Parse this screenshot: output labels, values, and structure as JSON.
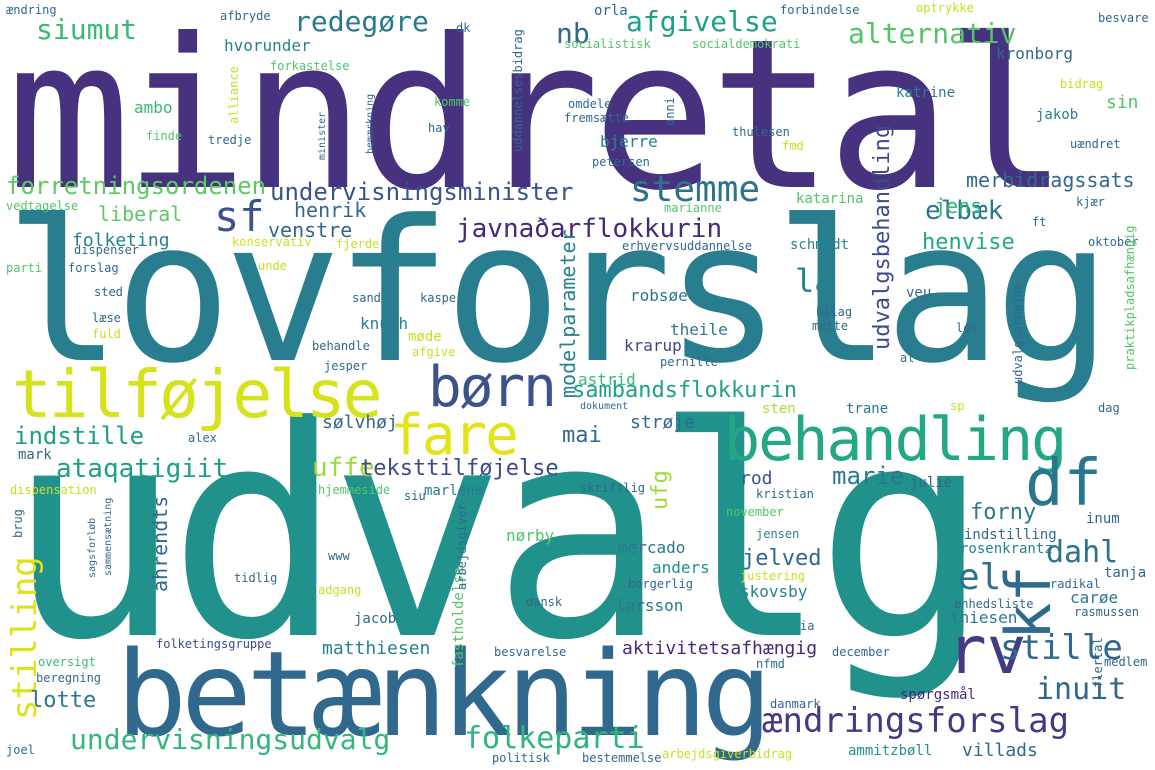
{
  "words": [
    {
      "text": "mindretal",
      "color": "#46327e"
    },
    {
      "text": "lovforslag",
      "color": "#287d8e"
    },
    {
      "text": "udvalg",
      "color": "#21918c"
    },
    {
      "text": "betænkning",
      "color": "#31688e"
    },
    {
      "text": "behandling",
      "color": "#22a884"
    },
    {
      "text": "tilføjelse",
      "color": "#d6e21a"
    },
    {
      "text": "børn",
      "color": "#3b528b"
    },
    {
      "text": "fare",
      "color": "#e3e418"
    },
    {
      "text": "df",
      "color": "#2a768e"
    },
    {
      "text": "kf",
      "color": "#31688e"
    },
    {
      "text": "rv",
      "color": "#443983"
    },
    {
      "text": "sf",
      "color": "#3b528b"
    },
    {
      "text": "stemme",
      "color": "#2c728e"
    },
    {
      "text": "el",
      "color": "#2c728e"
    },
    {
      "text": "ændringsforslag",
      "color": "#443983"
    },
    {
      "text": "undervisningsudvalg",
      "color": "#35b779"
    },
    {
      "text": "folkeparti",
      "color": "#2fb47c"
    },
    {
      "text": "stille",
      "color": "#31688e"
    },
    {
      "text": "inuit",
      "color": "#31688e"
    },
    {
      "text": "dahl",
      "color": "#2c728e"
    },
    {
      "text": "stilling",
      "color": "#dde318"
    },
    {
      "text": "siumut",
      "color": "#3aba76"
    },
    {
      "text": "redegøre",
      "color": "#2a788e"
    },
    {
      "text": "afgivelse",
      "color": "#1fa188"
    },
    {
      "text": "alternativ",
      "color": "#52c569"
    },
    {
      "text": "nb",
      "color": "#31688e"
    },
    {
      "text": "forretningsordenen",
      "color": "#5ec962"
    },
    {
      "text": "undervisningsminister",
      "color": "#3b528b"
    },
    {
      "text": "javnaðarflokkurin",
      "color": "#482878"
    },
    {
      "text": "elbæk",
      "color": "#2a788e"
    },
    {
      "text": "udvalgsbehandling",
      "color": "#3e4989"
    },
    {
      "text": "merbidragssats",
      "color": "#31688e"
    },
    {
      "text": "liberal",
      "color": "#5ec962"
    },
    {
      "text": "folketing",
      "color": "#26828e"
    },
    {
      "text": "henrik",
      "color": "#31688e"
    },
    {
      "text": "venstre",
      "color": "#31688e"
    },
    {
      "text": "jens",
      "color": "#2fb47c"
    },
    {
      "text": "henvise",
      "color": "#22a884"
    },
    {
      "text": "la",
      "color": "#26828e"
    },
    {
      "text": "sambandsflokkurin",
      "color": "#1fa188"
    },
    {
      "text": "indstille",
      "color": "#1f9e89"
    },
    {
      "text": "ataqatigiit",
      "color": "#1f9e89"
    },
    {
      "text": "uffe",
      "color": "#a0da39"
    },
    {
      "text": "teksttilføjelse",
      "color": "#3e4989"
    },
    {
      "text": "mai",
      "color": "#31688e"
    },
    {
      "text": "marie",
      "color": "#2a788e"
    },
    {
      "text": "ufg",
      "color": "#a0da39"
    },
    {
      "text": "forny",
      "color": "#2a788e"
    },
    {
      "text": "lotte",
      "color": "#2a788e"
    },
    {
      "text": "modelparameter",
      "color": "#26828e"
    },
    {
      "text": "sølvhøj",
      "color": "#31688e"
    },
    {
      "text": "strøje",
      "color": "#31688e"
    },
    {
      "text": "ahrendts",
      "color": "#31688e"
    },
    {
      "text": "jelved",
      "color": "#31688e"
    },
    {
      "text": "aktivitetsafhængig",
      "color": "#482878"
    },
    {
      "text": "matthiesen",
      "color": "#26828e"
    },
    {
      "text": "ambo",
      "color": "#3aba76"
    },
    {
      "text": "hvorunder",
      "color": "#26828e"
    },
    {
      "text": "kronborg",
      "color": "#31688e"
    },
    {
      "text": "katrine",
      "color": "#26828e"
    },
    {
      "text": "jakob",
      "color": "#26828e"
    },
    {
      "text": "sin",
      "color": "#52c569"
    },
    {
      "text": "bjerre",
      "color": "#26828e"
    },
    {
      "text": "katarina",
      "color": "#52c569"
    },
    {
      "text": "schmidt",
      "color": "#26828e"
    },
    {
      "text": "knuth",
      "color": "#26828e"
    },
    {
      "text": "robsøe",
      "color": "#2a788e"
    },
    {
      "text": "theile",
      "color": "#2a788e"
    },
    {
      "text": "krarup",
      "color": "#3e4989"
    },
    {
      "text": "astrid",
      "color": "#3aba76"
    },
    {
      "text": "rod",
      "color": "#3b528b"
    },
    {
      "text": "marlene",
      "color": "#2a788e"
    },
    {
      "text": "mercado",
      "color": "#2a788e"
    },
    {
      "text": "anders",
      "color": "#21918c"
    },
    {
      "text": "nørby",
      "color": "#52c569"
    },
    {
      "text": "larsson",
      "color": "#2a788e"
    },
    {
      "text": "skovsby",
      "color": "#26828e"
    },
    {
      "text": "carøe",
      "color": "#2a788e"
    },
    {
      "text": "thiesen",
      "color": "#2a788e"
    },
    {
      "text": "villads",
      "color": "#31688e"
    },
    {
      "text": "indstilling",
      "color": "#31688e"
    },
    {
      "text": "rosenkrantz",
      "color": "#26828e"
    },
    {
      "text": "jacob",
      "color": "#31688e"
    },
    {
      "text": "tanja",
      "color": "#31688e"
    },
    {
      "text": "jensen",
      "color": "#26828e"
    },
    {
      "text": "sten",
      "color": "#addc30"
    },
    {
      "text": "trane",
      "color": "#2a788e"
    },
    {
      "text": "julie",
      "color": "#31688e"
    },
    {
      "text": "kristian",
      "color": "#31688e"
    },
    {
      "text": "veu",
      "color": "#31688e"
    },
    {
      "text": "møde",
      "color": "#c8e020"
    },
    {
      "text": "sand",
      "color": "#31688e"
    },
    {
      "text": "kaspe",
      "color": "#31688e"
    },
    {
      "text": "mark",
      "color": "#31688e"
    },
    {
      "text": "alex",
      "color": "#31688e"
    },
    {
      "text": "inum",
      "color": "#31688e"
    },
    {
      "text": "folketingsgruppe",
      "color": "#3e4989"
    },
    {
      "text": "fastholdelse",
      "color": "#52c569"
    },
    {
      "text": "besvarelse",
      "color": "#31688e"
    },
    {
      "text": "december",
      "color": "#31688e"
    },
    {
      "text": "medlem",
      "color": "#31688e"
    },
    {
      "text": "nfmd",
      "color": "#31688e"
    },
    {
      "text": "ia",
      "color": "#31688e"
    },
    {
      "text": "ammitzbøll",
      "color": "#21918c"
    },
    {
      "text": "spørgsmål",
      "color": "#482878"
    },
    {
      "text": "flertal",
      "color": "#31688e"
    },
    {
      "text": "rasmussen",
      "color": "#31688e"
    },
    {
      "text": "radikal",
      "color": "#31688e"
    },
    {
      "text": "enhedsliste",
      "color": "#31688e"
    },
    {
      "text": "justering",
      "color": "#c8e020"
    },
    {
      "text": "borgerlig",
      "color": "#31688e"
    },
    {
      "text": "dansk",
      "color": "#31688e"
    },
    {
      "text": "arbejdsgiver",
      "color": "#31688e"
    },
    {
      "text": "tidlig",
      "color": "#31688e"
    },
    {
      "text": "adgang",
      "color": "#c8e020"
    },
    {
      "text": "oversigt",
      "color": "#3aba76"
    },
    {
      "text": "beregning",
      "color": "#31688e"
    },
    {
      "text": "joel",
      "color": "#31688e"
    },
    {
      "text": "politisk",
      "color": "#31688e"
    },
    {
      "text": "bestemmelse",
      "color": "#31688e"
    },
    {
      "text": "arbejdsgiverbidrag",
      "color": "#c8e020"
    },
    {
      "text": "danmark",
      "color": "#31688e"
    },
    {
      "text": "ændring",
      "color": "#31688e"
    },
    {
      "text": "afbryde",
      "color": "#31688e"
    },
    {
      "text": "forkastelse",
      "color": "#52c569"
    },
    {
      "text": "dk",
      "color": "#31688e"
    },
    {
      "text": "orla",
      "color": "#31688e"
    },
    {
      "text": "forbindelse",
      "color": "#31688e"
    },
    {
      "text": "optrykke",
      "color": "#c8e020"
    },
    {
      "text": "besvare",
      "color": "#31688e"
    },
    {
      "text": "socialistisk",
      "color": "#52c569"
    },
    {
      "text": "socialdemokrati",
      "color": "#52c569"
    },
    {
      "text": "uddannelsesbidrag",
      "color": "#31688e"
    },
    {
      "text": "bidrag",
      "color": "#c8e020"
    },
    {
      "text": "uændret",
      "color": "#31688e"
    },
    {
      "text": "thulesen",
      "color": "#31688e"
    },
    {
      "text": "fmd",
      "color": "#c8e020"
    },
    {
      "text": "petersen",
      "color": "#31688e"
    },
    {
      "text": "anni",
      "color": "#31688e"
    },
    {
      "text": "omdele",
      "color": "#31688e"
    },
    {
      "text": "fremsætte",
      "color": "#31688e"
    },
    {
      "text": "komme",
      "color": "#52c569"
    },
    {
      "text": "hav",
      "color": "#31688e"
    },
    {
      "text": "bemærkning",
      "color": "#31688e"
    },
    {
      "text": "minister",
      "color": "#31688e"
    },
    {
      "text": "alliance",
      "color": "#c8e020"
    },
    {
      "text": "tredje",
      "color": "#31688e"
    },
    {
      "text": "finde",
      "color": "#52c569"
    },
    {
      "text": "vedtagelse",
      "color": "#52c569"
    },
    {
      "text": "dispenser",
      "color": "#31688e"
    },
    {
      "text": "konservativ",
      "color": "#c8e020"
    },
    {
      "text": "parti",
      "color": "#52c569"
    },
    {
      "text": "forslag",
      "color": "#31688e"
    },
    {
      "text": "unde",
      "color": "#c8e020"
    },
    {
      "text": "fjerde",
      "color": "#c8e020"
    },
    {
      "text": "sted",
      "color": "#31688e"
    },
    {
      "text": "læse",
      "color": "#31688e"
    },
    {
      "text": "fuld",
      "color": "#c8e020"
    },
    {
      "text": "behandle",
      "color": "#31688e"
    },
    {
      "text": "afgive",
      "color": "#c8e020"
    },
    {
      "text": "jesper",
      "color": "#31688e"
    },
    {
      "text": "marianne",
      "color": "#52c569"
    },
    {
      "text": "erhvervsuddannelse",
      "color": "#31688e"
    },
    {
      "text": "ft",
      "color": "#31688e"
    },
    {
      "text": "kjær",
      "color": "#31688e"
    },
    {
      "text": "oktober",
      "color": "#31688e"
    },
    {
      "text": "praktikpladsafhængig",
      "color": "#52c569"
    },
    {
      "text": "udvalgsarbejde",
      "color": "#31688e"
    },
    {
      "text": "lov",
      "color": "#31688e"
    },
    {
      "text": "al",
      "color": "#31688e"
    },
    {
      "text": "bilag",
      "color": "#31688e"
    },
    {
      "text": "mette",
      "color": "#31688e"
    },
    {
      "text": "pernille",
      "color": "#31688e"
    },
    {
      "text": "dag",
      "color": "#31688e"
    },
    {
      "text": "sp",
      "color": "#c8e020"
    },
    {
      "text": "dokument",
      "color": "#31688e"
    },
    {
      "text": "november",
      "color": "#52c569"
    },
    {
      "text": "skriftlig",
      "color": "#31688e"
    },
    {
      "text": "siu",
      "color": "#31688e"
    },
    {
      "text": "hjemmeside",
      "color": "#52c569"
    },
    {
      "text": "dispensation",
      "color": "#c8e020"
    },
    {
      "text": "brug",
      "color": "#31688e"
    },
    {
      "text": "sagsforløb",
      "color": "#31688e"
    },
    {
      "text": "sammensætning",
      "color": "#31688e"
    },
    {
      "text": "www",
      "color": "#31688e"
    }
  ]
}
